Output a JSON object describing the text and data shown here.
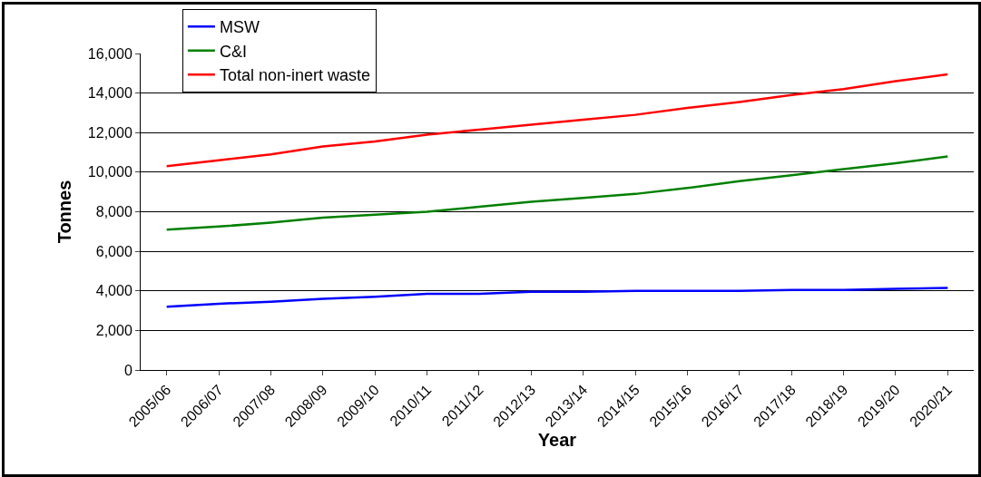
{
  "chart_data": {
    "type": "line",
    "xlabel": "Year",
    "ylabel": "Tonnes",
    "categories": [
      "2005/06",
      "2006/07",
      "2007/08",
      "2008/09",
      "2009/10",
      "2010/11",
      "2011/12",
      "2012/13",
      "2013/14",
      "2014/15",
      "2015/16",
      "2016/17",
      "2017/18",
      "2018/19",
      "2019/20",
      "2020/21"
    ],
    "series": [
      {
        "name": "MSW",
        "color": "#0000ff",
        "values": [
          3200,
          3350,
          3450,
          3600,
          3700,
          3850,
          3850,
          3950,
          3950,
          4000,
          4000,
          4000,
          4050,
          4050,
          4100,
          4150
        ]
      },
      {
        "name": "C&I",
        "color": "#008000",
        "values": [
          7100,
          7250,
          7450,
          7700,
          7850,
          8000,
          8250,
          8500,
          8700,
          8900,
          9200,
          9550,
          9850,
          10150,
          10450,
          10800
        ]
      },
      {
        "name": "Total non-inert waste",
        "color": "#ff0000",
        "values": [
          10300,
          10600,
          10900,
          11300,
          11550,
          11900,
          12150,
          12400,
          12650,
          12900,
          13250,
          13550,
          13900,
          14200,
          14600,
          14950
        ]
      }
    ],
    "ylim": [
      0,
      16000
    ],
    "yticks": [
      {
        "value": 0,
        "label": "0"
      },
      {
        "value": 2000,
        "label": "2,000"
      },
      {
        "value": 4000,
        "label": "4,000"
      },
      {
        "value": 6000,
        "label": "6,000"
      },
      {
        "value": 8000,
        "label": "8,000"
      },
      {
        "value": 10000,
        "label": "10,000"
      },
      {
        "value": 12000,
        "label": "12,000"
      },
      {
        "value": 14000,
        "label": "14,000"
      },
      {
        "value": 16000,
        "label": "16,000"
      }
    ],
    "grid": "y",
    "legend": "top left",
    "marker": "none",
    "line_style": "solid"
  }
}
